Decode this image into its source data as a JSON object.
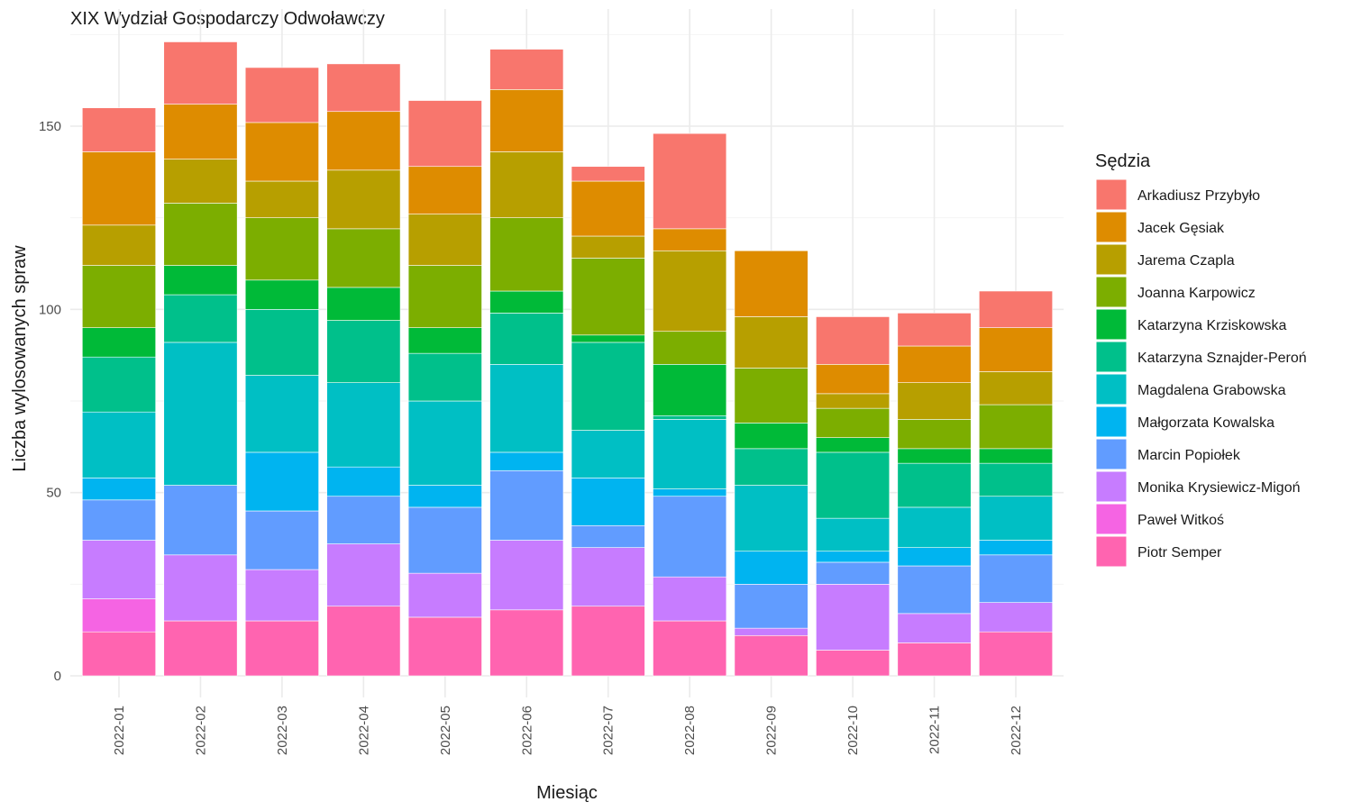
{
  "chart_data": {
    "type": "bar",
    "stacked": true,
    "title": "XIX Wydział Gospodarczy Odwoławczy",
    "xlabel": "Miesiąc",
    "ylabel": "Liczba wylosowanych spraw",
    "ylim": [
      0,
      175
    ],
    "yticks": [
      0,
      50,
      100,
      150
    ],
    "grid": true,
    "legend_title": "Sędzia",
    "legend_position": "right",
    "categories": [
      "2022-01",
      "2022-02",
      "2022-03",
      "2022-04",
      "2022-05",
      "2022-06",
      "2022-07",
      "2022-08",
      "2022-09",
      "2022-10",
      "2022-11",
      "2022-12"
    ],
    "series": [
      {
        "name": "Arkadiusz Przybyło",
        "color": "#F8766D",
        "values": [
          12,
          17,
          15,
          13,
          18,
          11,
          4,
          26,
          0,
          13,
          9,
          10
        ]
      },
      {
        "name": "Jacek Gęsiak",
        "color": "#DE8C00",
        "values": [
          20,
          15,
          16,
          16,
          13,
          17,
          15,
          6,
          18,
          8,
          10,
          12
        ]
      },
      {
        "name": "Jarema Czapla",
        "color": "#B79F00",
        "values": [
          11,
          12,
          10,
          16,
          14,
          18,
          6,
          22,
          14,
          4,
          10,
          9
        ]
      },
      {
        "name": "Joanna Karpowicz",
        "color": "#7CAE00",
        "values": [
          17,
          17,
          17,
          16,
          17,
          20,
          21,
          9,
          15,
          8,
          8,
          12
        ]
      },
      {
        "name": "Katarzyna Krziskowska",
        "color": "#00BA38",
        "values": [
          8,
          8,
          8,
          9,
          7,
          6,
          2,
          14,
          7,
          4,
          4,
          4
        ]
      },
      {
        "name": "Katarzyna Sznajder-Peroń",
        "color": "#00C08B",
        "values": [
          15,
          13,
          18,
          17,
          13,
          14,
          24,
          1,
          10,
          18,
          12,
          9
        ]
      },
      {
        "name": "Magdalena Grabowska",
        "color": "#00BFC4",
        "values": [
          18,
          39,
          21,
          23,
          23,
          24,
          13,
          19,
          18,
          9,
          11,
          12
        ]
      },
      {
        "name": "Małgorzata Kowalska",
        "color": "#00B4F0",
        "values": [
          6,
          0,
          16,
          8,
          6,
          5,
          13,
          2,
          9,
          3,
          5,
          4
        ]
      },
      {
        "name": "Marcin Popiołek",
        "color": "#619CFF",
        "values": [
          11,
          19,
          16,
          13,
          18,
          19,
          6,
          22,
          12,
          6,
          13,
          13
        ]
      },
      {
        "name": "Monika Krysiewicz-Migoń",
        "color": "#C77CFF",
        "values": [
          16,
          18,
          14,
          17,
          12,
          19,
          16,
          12,
          2,
          18,
          8,
          8
        ]
      },
      {
        "name": "Paweł Witkoś",
        "color": "#F564E3",
        "values": [
          9,
          0,
          0,
          0,
          0,
          0,
          0,
          0,
          0,
          0,
          0,
          0
        ]
      },
      {
        "name": "Piotr Semper",
        "color": "#FF64B0",
        "values": [
          12,
          15,
          15,
          19,
          16,
          18,
          19,
          15,
          11,
          7,
          9,
          12
        ]
      }
    ]
  }
}
